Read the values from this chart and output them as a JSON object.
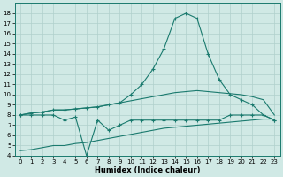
{
  "xlabel": "Humidex (Indice chaleur)",
  "x": [
    0,
    1,
    2,
    3,
    4,
    5,
    6,
    7,
    8,
    9,
    10,
    11,
    12,
    13,
    14,
    15,
    16,
    17,
    18,
    19,
    20,
    21,
    22,
    23
  ],
  "curve_bottom": [
    4.5,
    4.6,
    4.8,
    5.0,
    5.0,
    5.2,
    5.3,
    5.5,
    5.7,
    5.9,
    6.1,
    6.3,
    6.5,
    6.7,
    6.8,
    6.9,
    7.0,
    7.1,
    7.2,
    7.3,
    7.4,
    7.5,
    7.6,
    7.6
  ],
  "curve_wobbly": [
    8.0,
    8.0,
    8.0,
    8.0,
    7.5,
    7.8,
    4.0,
    7.5,
    6.5,
    7.0,
    7.5,
    7.5,
    7.5,
    7.5,
    7.5,
    7.5,
    7.5,
    7.5,
    7.5,
    8.0,
    8.0,
    8.0,
    8.0,
    7.5
  ],
  "curve_mid": [
    8.0,
    8.2,
    8.3,
    8.5,
    8.5,
    8.6,
    8.7,
    8.8,
    9.0,
    9.2,
    9.4,
    9.6,
    9.8,
    10.0,
    10.2,
    10.3,
    10.4,
    10.3,
    10.2,
    10.1,
    10.0,
    9.8,
    9.5,
    8.0
  ],
  "curve_peak": [
    8.0,
    8.2,
    8.3,
    8.5,
    8.5,
    8.6,
    8.7,
    8.8,
    9.0,
    9.2,
    10.0,
    11.0,
    12.5,
    14.5,
    17.5,
    18.0,
    17.5,
    14.0,
    11.5,
    10.0,
    9.5,
    9.0,
    8.0,
    7.5
  ],
  "color": "#1a7a6e",
  "bg_color": "#d0e9e5",
  "grid_color": "#b0d0cc",
  "ylim": [
    4,
    19
  ],
  "xlim": [
    -0.5,
    23.5
  ],
  "yticks": [
    4,
    5,
    6,
    7,
    8,
    9,
    10,
    11,
    12,
    13,
    14,
    15,
    16,
    17,
    18
  ],
  "xticks": [
    0,
    1,
    2,
    3,
    4,
    5,
    6,
    7,
    8,
    9,
    10,
    11,
    12,
    13,
    14,
    15,
    16,
    17,
    18,
    19,
    20,
    21,
    22,
    23
  ]
}
